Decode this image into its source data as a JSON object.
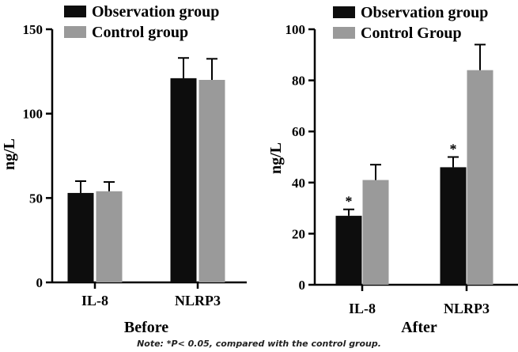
{
  "figure": {
    "note": "Note: *P< 0.05, compared with the control group.",
    "colors": {
      "observation": "#0d0d0d",
      "control": "#9a9a9a"
    }
  },
  "chart_data": [
    {
      "type": "bar",
      "panel_label": "Before",
      "categories": [
        "IL-8",
        "NLRP3"
      ],
      "ylabel": "ng/L",
      "ylim": [
        0,
        150
      ],
      "yticks": [
        "0",
        "50",
        "100",
        "150"
      ],
      "legend": {
        "placement": "top",
        "entries": [
          "Observation group",
          "Control group"
        ]
      },
      "series": [
        {
          "name": "Observation group",
          "values": [
            53,
            121
          ],
          "errors": [
            7,
            12
          ],
          "markers": [
            "",
            ""
          ]
        },
        {
          "name": "Control group",
          "values": [
            54,
            120
          ],
          "errors": [
            5.5,
            12.5
          ],
          "markers": [
            "",
            ""
          ]
        }
      ]
    },
    {
      "type": "bar",
      "panel_label": "After",
      "categories": [
        "IL-8",
        "NLRP3"
      ],
      "ylabel": "ng/L",
      "ylim": [
        0,
        100
      ],
      "yticks": [
        "0",
        "20",
        "40",
        "60",
        "80",
        "100"
      ],
      "legend": {
        "placement": "top",
        "entries": [
          "Observation group",
          "Control Group"
        ]
      },
      "series": [
        {
          "name": "Observation group",
          "values": [
            27,
            46
          ],
          "errors": [
            2.5,
            4
          ],
          "markers": [
            "*",
            "*"
          ]
        },
        {
          "name": "Control Group",
          "values": [
            41,
            84
          ],
          "errors": [
            6,
            10
          ],
          "markers": [
            "",
            ""
          ]
        }
      ]
    }
  ]
}
